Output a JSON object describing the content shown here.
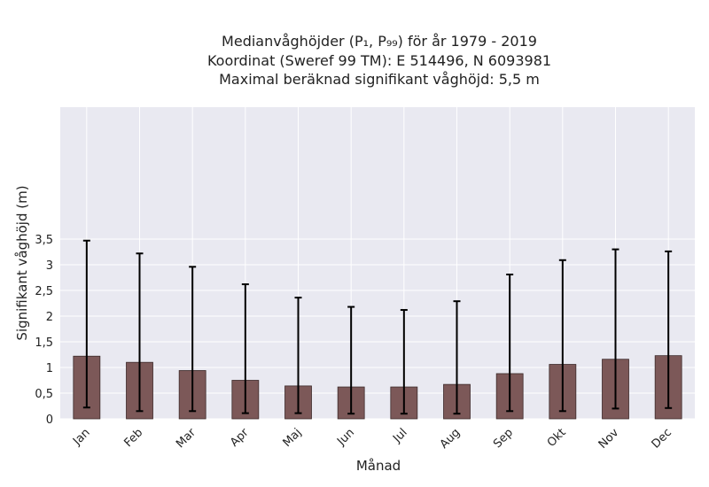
{
  "chart_data": {
    "type": "bar",
    "title_lines": [
      "Medianvåghöjder (P₁, P₉₉) för år 1979 - 2019",
      "Koordinat (Sweref 99 TM): E 514496, N 6093981",
      "Maximal beräknad signifikant våghöjd: 5,5 m"
    ],
    "xlabel": "Månad",
    "ylabel": "Signifikant våghöjd (m)",
    "categories": [
      "Jan",
      "Feb",
      "Mar",
      "Apr",
      "Maj",
      "Jun",
      "Jul",
      "Aug",
      "Sep",
      "Okt",
      "Nov",
      "Dec"
    ],
    "values": [
      1.22,
      1.1,
      0.94,
      0.75,
      0.64,
      0.62,
      0.62,
      0.67,
      0.88,
      1.06,
      1.16,
      1.23
    ],
    "p1": [
      0.22,
      0.15,
      0.15,
      0.11,
      0.11,
      0.1,
      0.1,
      0.1,
      0.15,
      0.15,
      0.2,
      0.21
    ],
    "p99": [
      3.47,
      3.22,
      2.96,
      2.62,
      2.36,
      2.18,
      2.12,
      2.29,
      2.81,
      3.09,
      3.3,
      3.26
    ],
    "ylim": [
      0,
      3.6
    ],
    "yticks": [
      0,
      0.5,
      1,
      1.5,
      2,
      2.5,
      3,
      3.5
    ],
    "ytick_labels": [
      "0",
      "0,5",
      "1",
      "1,5",
      "2",
      "2,5",
      "3",
      "3,5"
    ],
    "grid": true,
    "colors": {
      "bar_fill": "#7c5858",
      "bar_edge": "#3c2a2a",
      "error_bar": "#000000",
      "plot_background": "#e9e9f1",
      "grid": "#ffffff"
    }
  }
}
